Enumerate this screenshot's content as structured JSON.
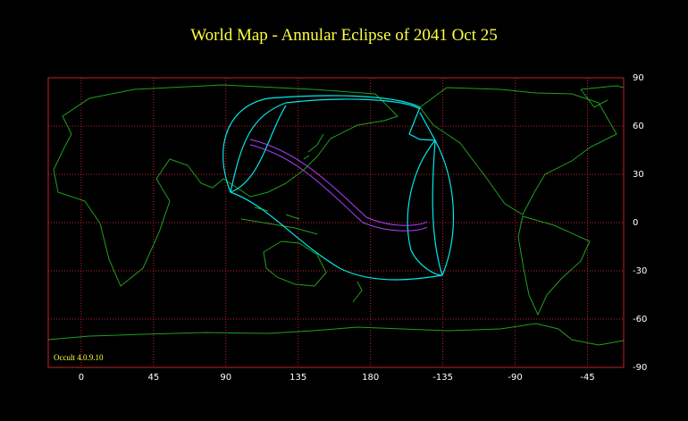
{
  "map": {
    "title": "World Map  -  Annular Eclipse  of  2041 Oct 25",
    "xlim": [
      -20.5,
      337.5
    ],
    "ylim": [
      -90,
      90
    ],
    "xticks": [
      0,
      45,
      90,
      135,
      180,
      {
        "value": 225,
        "label": "-135"
      },
      {
        "value": 270,
        "label": "-90"
      },
      {
        "value": 315,
        "label": "-45"
      }
    ],
    "yticks": [
      90,
      60,
      30,
      0,
      -30,
      -60,
      -90
    ],
    "version": "Occult 4.0.9.10"
  }
}
